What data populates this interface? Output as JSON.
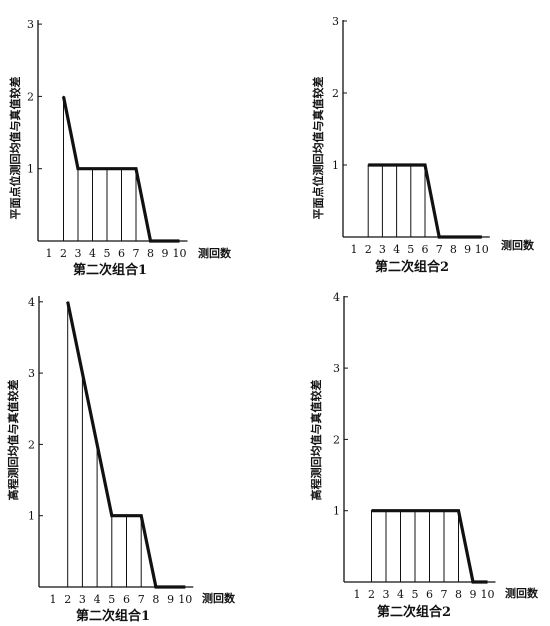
{
  "chart_data": [
    {
      "type": "line",
      "caption": "第二次组合1",
      "ylabel": "平面点位测回均值与真值较差",
      "xlabel": "测回数",
      "x_ticks": [
        "1",
        "2",
        "3",
        "4",
        "5",
        "6",
        "7",
        "8",
        "9",
        "10"
      ],
      "y_ticks": [
        "1",
        "2",
        "3"
      ],
      "ylim": [
        0,
        3
      ],
      "xlim": [
        1,
        10
      ],
      "fill_between_x": [
        2,
        7
      ],
      "series": [
        {
          "x": [
            2,
            3,
            4,
            5,
            6,
            7,
            8,
            9,
            10
          ],
          "y": [
            2,
            1,
            1,
            1,
            1,
            1,
            0,
            0,
            0
          ]
        }
      ]
    },
    {
      "type": "line",
      "caption": "第二次组合2",
      "ylabel": "平面点位测回均值与真值较差",
      "xlabel": "测回数",
      "x_ticks": [
        "1",
        "2",
        "3",
        "4",
        "5",
        "6",
        "7",
        "8",
        "9",
        "10"
      ],
      "y_ticks": [
        "1",
        "2",
        "3"
      ],
      "ylim": [
        0,
        3
      ],
      "xlim": [
        1,
        10
      ],
      "fill_between_x": [
        2,
        6
      ],
      "series": [
        {
          "x": [
            2,
            3,
            4,
            5,
            6,
            7,
            8,
            9,
            10
          ],
          "y": [
            1,
            1,
            1,
            1,
            1,
            0,
            0,
            0,
            0
          ]
        }
      ]
    },
    {
      "type": "line",
      "caption": "第二次组合1",
      "ylabel": "高程测回均值与真值较差",
      "xlabel": "测回数",
      "x_ticks": [
        "1",
        "2",
        "3",
        "4",
        "5",
        "6",
        "7",
        "8",
        "9",
        "10"
      ],
      "y_ticks": [
        "1",
        "2",
        "3",
        "4"
      ],
      "ylim": [
        0,
        4
      ],
      "xlim": [
        1,
        10
      ],
      "fill_between_x": [
        2,
        7
      ],
      "series": [
        {
          "x": [
            2,
            3,
            4,
            5,
            6,
            7,
            8,
            9,
            10
          ],
          "y": [
            4,
            3,
            2,
            1,
            1,
            1,
            0,
            0,
            0
          ]
        }
      ]
    },
    {
      "type": "line",
      "caption": "第二次组合2",
      "ylabel": "高程测回均值与真值较差",
      "xlabel": "测回数",
      "x_ticks": [
        "1",
        "2",
        "3",
        "4",
        "5",
        "6",
        "7",
        "8",
        "9",
        "10"
      ],
      "y_ticks": [
        "1",
        "2",
        "3",
        "4"
      ],
      "ylim": [
        0,
        4
      ],
      "xlim": [
        1,
        10
      ],
      "fill_between_x": [
        2,
        8
      ],
      "series": [
        {
          "x": [
            2,
            3,
            4,
            5,
            6,
            7,
            8,
            9,
            10
          ],
          "y": [
            1,
            1,
            1,
            1,
            1,
            1,
            1,
            0,
            0
          ]
        }
      ]
    }
  ]
}
